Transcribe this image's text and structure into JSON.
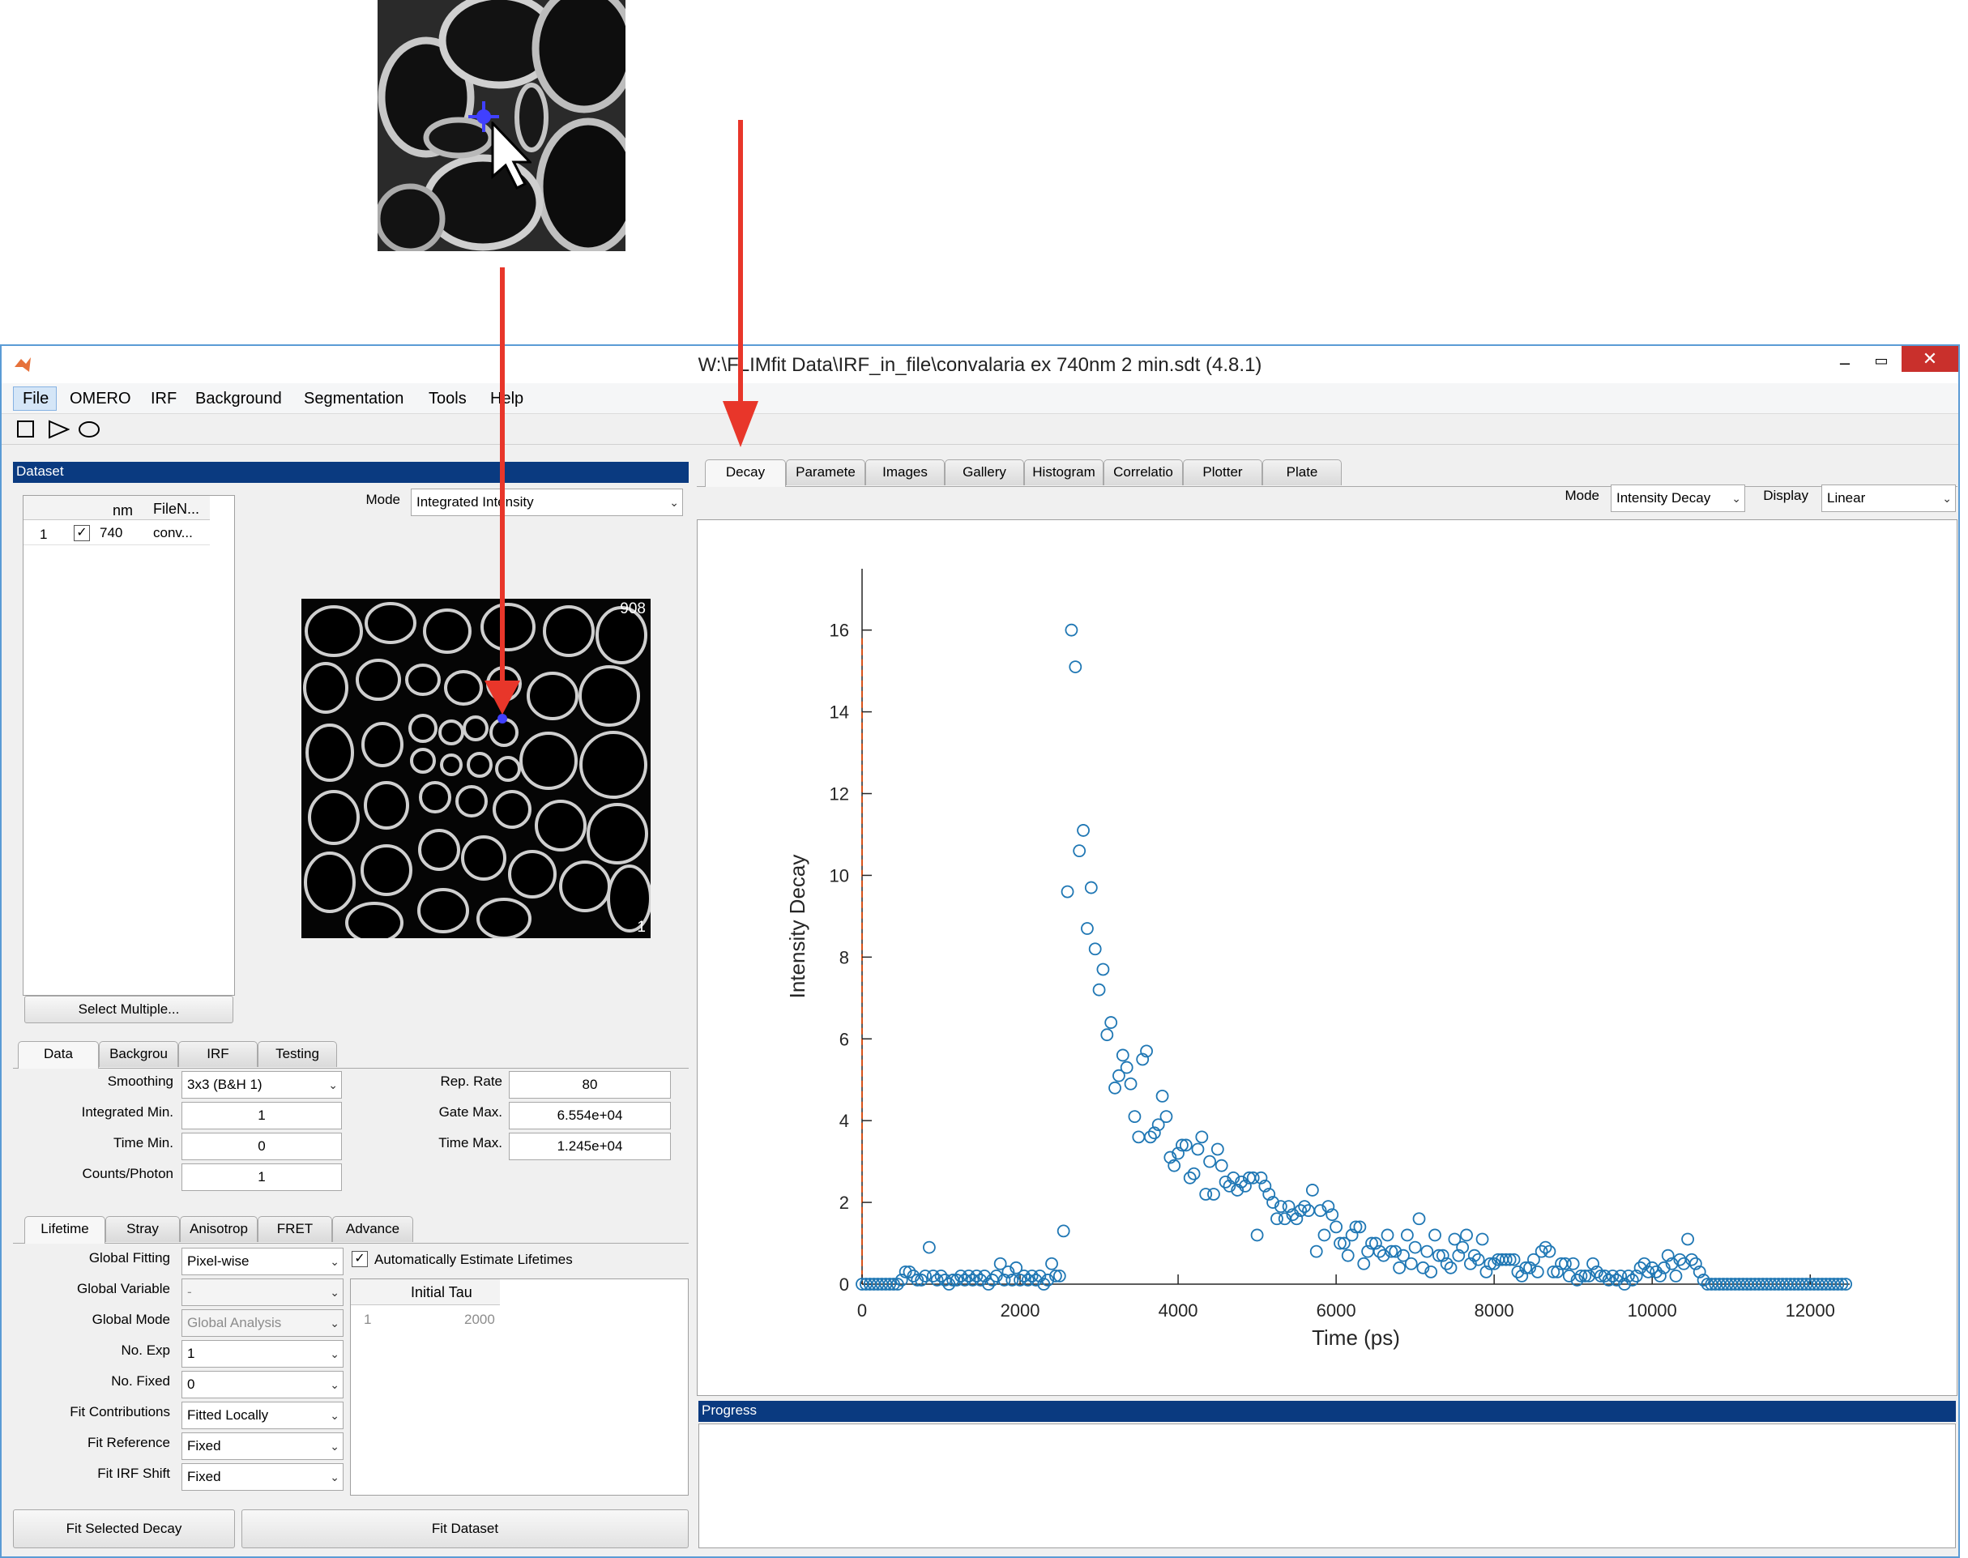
{
  "window": {
    "title": "W:\\FLIMfit Data\\IRF_in_file\\convalaria ex 740nm 2 min.sdt (4.8.1)",
    "accent": "#0a3a80"
  },
  "menu": [
    "File",
    "OMERO",
    "IRF",
    "Background",
    "Segmentation",
    "Tools",
    "Help"
  ],
  "dataset": {
    "header": "Dataset",
    "table": {
      "columns": [
        "",
        "",
        "nm",
        "FileN..."
      ],
      "rows": [
        {
          "index": "1",
          "checked": true,
          "nm": "740",
          "file": "conv..."
        }
      ]
    },
    "mode_label": "Mode",
    "mode_value": "Integrated Intensity",
    "image_max": "908",
    "image_min": "1",
    "select_multiple": "Select Multiple..."
  },
  "data_tabs": [
    "Data",
    "Backgrou",
    "IRF",
    "Testing"
  ],
  "data_params": {
    "smoothing_label": "Smoothing",
    "smoothing_value": "3x3 (B&H 1)",
    "intmin_label": "Integrated Min.",
    "intmin_value": "1",
    "timemin_label": "Time Min.",
    "timemin_value": "0",
    "cpp_label": "Counts/Photon",
    "cpp_value": "1",
    "reprate_label": "Rep. Rate",
    "reprate_value": "80",
    "gatemax_label": "Gate Max.",
    "gatemax_value": "6.554e+04",
    "timemax_label": "Time Max.",
    "timemax_value": "1.245e+04"
  },
  "fit_tabs": [
    "Lifetime",
    "Stray",
    "Anisotrop",
    "FRET",
    "Advance"
  ],
  "fit_params": {
    "global_fitting_label": "Global Fitting",
    "global_fitting_value": "Pixel-wise",
    "global_variable_label": "Global Variable",
    "global_variable_value": "-",
    "global_mode_label": "Global Mode",
    "global_mode_value": "Global Analysis",
    "no_exp_label": "No. Exp",
    "no_exp_value": "1",
    "no_fixed_label": "No. Fixed",
    "no_fixed_value": "0",
    "fit_contrib_label": "Fit Contributions",
    "fit_contrib_value": "Fitted Locally",
    "fit_ref_label": "Fit Reference",
    "fit_ref_value": "Fixed",
    "fit_irf_label": "Fit IRF Shift",
    "fit_irf_value": "Fixed",
    "auto_estimate_label": "Automatically Estimate Lifetimes",
    "tau_header": "Initial Tau",
    "tau_row_index": "1",
    "tau_row_value": "2000"
  },
  "buttons": {
    "fit_selected": "Fit Selected Decay",
    "fit_dataset": "Fit Dataset"
  },
  "plot_tabs": [
    "Decay",
    "Paramete",
    "Images",
    "Gallery",
    "Histogram",
    "Correlatio",
    "Plotter",
    "Plate"
  ],
  "plot_controls": {
    "mode_label": "Mode",
    "mode_value": "Intensity Decay",
    "display_label": "Display",
    "display_value": "Linear"
  },
  "progress": {
    "header": "Progress"
  },
  "colors": {
    "points": "#1f77b4",
    "irf_line": "#d95319",
    "arrow": "#e8362a",
    "cursor_marker": "#4040ff"
  },
  "chart_data": {
    "type": "scatter",
    "xlabel": "Time (ps)",
    "ylabel": "Intensity Decay",
    "xlim": [
      0,
      12500
    ],
    "ylim": [
      0,
      17.5
    ],
    "xticks": [
      0,
      2000,
      4000,
      6000,
      8000,
      10000,
      12000
    ],
    "yticks": [
      0,
      2,
      4,
      6,
      8,
      10,
      12,
      14,
      16
    ],
    "xticklabels": [
      "0",
      "2000",
      "4000",
      "6000",
      "8000",
      "10000",
      "12000"
    ],
    "yticklabels": [
      "0",
      "2",
      "4",
      "6",
      "8",
      "10",
      "12",
      "14",
      "16"
    ],
    "irf_marker_x": 0,
    "points": [
      [
        0,
        0
      ],
      [
        50,
        0
      ],
      [
        100,
        0
      ],
      [
        150,
        0
      ],
      [
        200,
        0
      ],
      [
        250,
        0
      ],
      [
        300,
        0
      ],
      [
        350,
        0
      ],
      [
        400,
        0
      ],
      [
        450,
        0
      ],
      [
        500,
        0.1
      ],
      [
        550,
        0.3
      ],
      [
        600,
        0.3
      ],
      [
        650,
        0.2
      ],
      [
        700,
        0.1
      ],
      [
        750,
        0.1
      ],
      [
        800,
        0.2
      ],
      [
        850,
        0.9
      ],
      [
        900,
        0.2
      ],
      [
        950,
        0.1
      ],
      [
        1000,
        0.2
      ],
      [
        1050,
        0.1
      ],
      [
        1100,
        0
      ],
      [
        1150,
        0.1
      ],
      [
        1200,
        0.1
      ],
      [
        1250,
        0.2
      ],
      [
        1300,
        0.1
      ],
      [
        1350,
        0.2
      ],
      [
        1400,
        0.1
      ],
      [
        1450,
        0.2
      ],
      [
        1500,
        0.1
      ],
      [
        1550,
        0.2
      ],
      [
        1600,
        0
      ],
      [
        1650,
        0.1
      ],
      [
        1700,
        0.2
      ],
      [
        1750,
        0.5
      ],
      [
        1800,
        0.1
      ],
      [
        1850,
        0.3
      ],
      [
        1900,
        0.1
      ],
      [
        1950,
        0.4
      ],
      [
        2000,
        0.1
      ],
      [
        2050,
        0.2
      ],
      [
        2100,
        0.1
      ],
      [
        2150,
        0.2
      ],
      [
        2200,
        0.1
      ],
      [
        2250,
        0.2
      ],
      [
        2300,
        0
      ],
      [
        2350,
        0.1
      ],
      [
        2400,
        0.5
      ],
      [
        2450,
        0.2
      ],
      [
        2500,
        0.2
      ],
      [
        2550,
        1.3
      ],
      [
        2600,
        9.6
      ],
      [
        2650,
        16
      ],
      [
        2700,
        15.1
      ],
      [
        2750,
        10.6
      ],
      [
        2800,
        11.1
      ],
      [
        2850,
        8.7
      ],
      [
        2900,
        9.7
      ],
      [
        2950,
        8.2
      ],
      [
        3000,
        7.2
      ],
      [
        3050,
        7.7
      ],
      [
        3100,
        6.1
      ],
      [
        3150,
        6.4
      ],
      [
        3200,
        4.8
      ],
      [
        3250,
        5.1
      ],
      [
        3300,
        5.6
      ],
      [
        3350,
        5.3
      ],
      [
        3400,
        4.9
      ],
      [
        3450,
        4.1
      ],
      [
        3500,
        3.6
      ],
      [
        3550,
        5.5
      ],
      [
        3600,
        5.7
      ],
      [
        3650,
        3.6
      ],
      [
        3700,
        3.7
      ],
      [
        3750,
        3.9
      ],
      [
        3800,
        4.6
      ],
      [
        3850,
        4.1
      ],
      [
        3900,
        3.1
      ],
      [
        3950,
        2.9
      ],
      [
        4000,
        3.2
      ],
      [
        4050,
        3.4
      ],
      [
        4100,
        3.4
      ],
      [
        4150,
        2.6
      ],
      [
        4200,
        2.7
      ],
      [
        4250,
        3.3
      ],
      [
        4300,
        3.6
      ],
      [
        4350,
        2.2
      ],
      [
        4400,
        3.0
      ],
      [
        4450,
        2.2
      ],
      [
        4500,
        3.3
      ],
      [
        4550,
        2.9
      ],
      [
        4600,
        2.5
      ],
      [
        4650,
        2.4
      ],
      [
        4700,
        2.6
      ],
      [
        4750,
        2.3
      ],
      [
        4800,
        2.5
      ],
      [
        4850,
        2.4
      ],
      [
        4900,
        2.6
      ],
      [
        4950,
        2.6
      ],
      [
        5000,
        1.2
      ],
      [
        5050,
        2.6
      ],
      [
        5100,
        2.4
      ],
      [
        5150,
        2.2
      ],
      [
        5200,
        2.0
      ],
      [
        5250,
        1.6
      ],
      [
        5300,
        1.9
      ],
      [
        5350,
        1.6
      ],
      [
        5400,
        1.9
      ],
      [
        5450,
        1.7
      ],
      [
        5500,
        1.6
      ],
      [
        5550,
        1.8
      ],
      [
        5600,
        1.9
      ],
      [
        5650,
        1.8
      ],
      [
        5700,
        2.3
      ],
      [
        5750,
        0.8
      ],
      [
        5800,
        1.8
      ],
      [
        5850,
        1.2
      ],
      [
        5900,
        1.9
      ],
      [
        5950,
        1.7
      ],
      [
        6000,
        1.4
      ],
      [
        6050,
        1.0
      ],
      [
        6100,
        1.0
      ],
      [
        6150,
        0.7
      ],
      [
        6200,
        1.2
      ],
      [
        6250,
        1.4
      ],
      [
        6300,
        1.4
      ],
      [
        6350,
        0.5
      ],
      [
        6400,
        0.8
      ],
      [
        6450,
        1.0
      ],
      [
        6500,
        1.0
      ],
      [
        6550,
        0.8
      ],
      [
        6600,
        0.7
      ],
      [
        6650,
        1.2
      ],
      [
        6700,
        0.8
      ],
      [
        6750,
        0.8
      ],
      [
        6800,
        0.4
      ],
      [
        6850,
        0.7
      ],
      [
        6900,
        1.2
      ],
      [
        6950,
        0.5
      ],
      [
        7000,
        0.9
      ],
      [
        7050,
        1.6
      ],
      [
        7100,
        0.4
      ],
      [
        7150,
        0.8
      ],
      [
        7200,
        0.3
      ],
      [
        7250,
        1.2
      ],
      [
        7300,
        0.7
      ],
      [
        7350,
        0.7
      ],
      [
        7400,
        0.5
      ],
      [
        7450,
        0.4
      ],
      [
        7500,
        1.1
      ],
      [
        7550,
        0.7
      ],
      [
        7600,
        0.9
      ],
      [
        7650,
        1.2
      ],
      [
        7700,
        0.5
      ],
      [
        7750,
        0.7
      ],
      [
        7800,
        0.6
      ],
      [
        7850,
        1.1
      ],
      [
        7900,
        0.3
      ],
      [
        7950,
        0.5
      ],
      [
        8000,
        0.5
      ],
      [
        8050,
        0.6
      ],
      [
        8100,
        0.6
      ],
      [
        8150,
        0.6
      ],
      [
        8200,
        0.6
      ],
      [
        8250,
        0.6
      ],
      [
        8300,
        0.3
      ],
      [
        8350,
        0.2
      ],
      [
        8400,
        0.4
      ],
      [
        8450,
        0.4
      ],
      [
        8500,
        0.6
      ],
      [
        8550,
        0.3
      ],
      [
        8600,
        0.8
      ],
      [
        8650,
        0.9
      ],
      [
        8700,
        0.8
      ],
      [
        8750,
        0.3
      ],
      [
        8800,
        0.3
      ],
      [
        8850,
        0.5
      ],
      [
        8900,
        0.5
      ],
      [
        8950,
        0.2
      ],
      [
        9000,
        0.5
      ],
      [
        9050,
        0.1
      ],
      [
        9100,
        0.2
      ],
      [
        9150,
        0.2
      ],
      [
        9200,
        0.2
      ],
      [
        9250,
        0.5
      ],
      [
        9300,
        0.3
      ],
      [
        9350,
        0.2
      ],
      [
        9400,
        0.2
      ],
      [
        9450,
        0.1
      ],
      [
        9500,
        0.2
      ],
      [
        9550,
        0.1
      ],
      [
        9600,
        0.2
      ],
      [
        9650,
        0
      ],
      [
        9700,
        0.2
      ],
      [
        9750,
        0.1
      ],
      [
        9800,
        0.2
      ],
      [
        9850,
        0.4
      ],
      [
        9900,
        0.5
      ],
      [
        9950,
        0.3
      ],
      [
        10000,
        0.4
      ],
      [
        10050,
        0.3
      ],
      [
        10100,
        0.2
      ],
      [
        10150,
        0.4
      ],
      [
        10200,
        0.7
      ],
      [
        10250,
        0.5
      ],
      [
        10300,
        0.2
      ],
      [
        10350,
        0.6
      ],
      [
        10400,
        0.5
      ],
      [
        10450,
        1.1
      ],
      [
        10500,
        0.6
      ],
      [
        10550,
        0.5
      ],
      [
        10600,
        0.3
      ],
      [
        10650,
        0.1
      ],
      [
        10700,
        0
      ],
      [
        10750,
        0
      ],
      [
        10800,
        0
      ],
      [
        10850,
        0
      ],
      [
        10900,
        0
      ],
      [
        10950,
        0
      ],
      [
        11000,
        0
      ],
      [
        11050,
        0
      ],
      [
        11100,
        0
      ],
      [
        11150,
        0
      ],
      [
        11200,
        0
      ],
      [
        11250,
        0
      ],
      [
        11300,
        0
      ],
      [
        11350,
        0
      ],
      [
        11400,
        0
      ],
      [
        11450,
        0
      ],
      [
        11500,
        0
      ],
      [
        11550,
        0
      ],
      [
        11600,
        0
      ],
      [
        11650,
        0
      ],
      [
        11700,
        0
      ],
      [
        11750,
        0
      ],
      [
        11800,
        0
      ],
      [
        11850,
        0
      ],
      [
        11900,
        0
      ],
      [
        11950,
        0
      ],
      [
        12000,
        0
      ],
      [
        12050,
        0
      ],
      [
        12100,
        0
      ],
      [
        12150,
        0
      ],
      [
        12200,
        0
      ],
      [
        12250,
        0
      ],
      [
        12300,
        0
      ],
      [
        12350,
        0
      ],
      [
        12400,
        0
      ],
      [
        12450,
        0
      ]
    ]
  }
}
